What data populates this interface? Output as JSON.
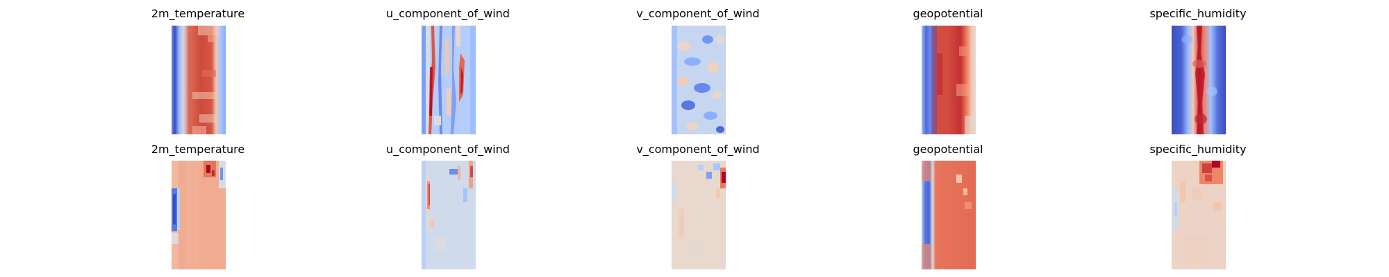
{
  "figure": {
    "colormap": "coolwarm",
    "background": "#ffffff",
    "rows": [
      {
        "panels": [
          {
            "title": "2m_temperature",
            "pattern": "warm-band-cool-edges"
          },
          {
            "title": "u_component_of_wind",
            "pattern": "vertical-streaks-mixed"
          },
          {
            "title": "v_component_of_wind",
            "pattern": "light-blue-noisy"
          },
          {
            "title": "geopotential",
            "pattern": "warm-band-cool-edges"
          },
          {
            "title": "specific_humidity",
            "pattern": "dark-red-core-blue-edges"
          }
        ]
      },
      {
        "panels": [
          {
            "title": "2m_temperature",
            "pattern": "salmon-fill-blue-left-edge"
          },
          {
            "title": "u_component_of_wind",
            "pattern": "pale-blue-fill-red-streaks-top"
          },
          {
            "title": "v_component_of_wind",
            "pattern": "pale-beige-fill-red-right-edge"
          },
          {
            "title": "geopotential",
            "pattern": "salmon-fill-blue-left-edge"
          },
          {
            "title": "specific_humidity",
            "pattern": "pale-fill-red-top-right"
          }
        ]
      }
    ]
  }
}
